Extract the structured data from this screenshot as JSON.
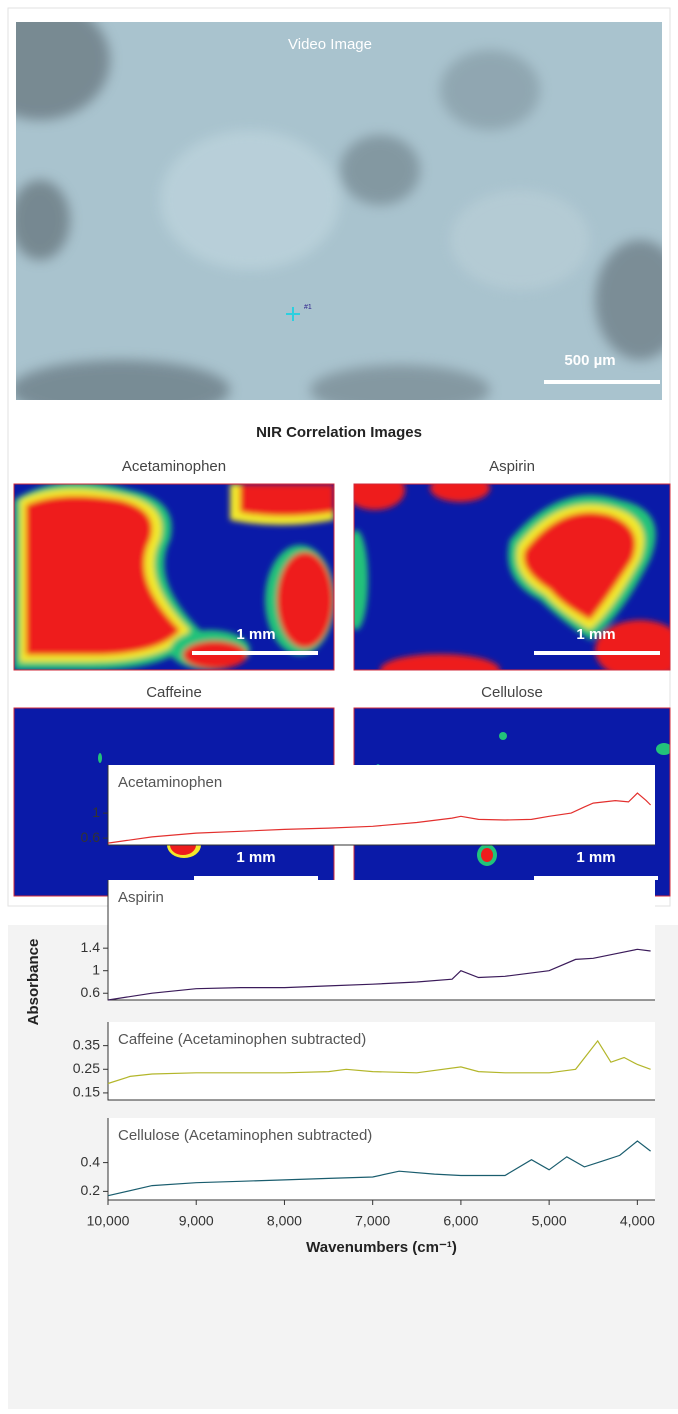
{
  "images": {
    "video_title": "Video Image",
    "video_scale": "500 µm",
    "marker": "#1",
    "nir_title": "NIR Correlation Images",
    "panels": [
      {
        "label": "Acetaminophen",
        "scale": "1 mm"
      },
      {
        "label": "Aspirin",
        "scale": "1 mm"
      },
      {
        "label": "Caffeine",
        "scale": "1 mm"
      },
      {
        "label": "Cellulose",
        "scale": "1 mm"
      }
    ]
  },
  "spectra_ylabel": "Absorbance",
  "chart_data": [
    {
      "type": "line",
      "title": "Acetaminophen",
      "color": "#e3302e",
      "xlim": [
        10000,
        3800
      ],
      "ylim": [
        0.49,
        1.77
      ],
      "yticks": [
        0.6,
        1.0
      ],
      "x": [
        10000,
        9500,
        9000,
        8500,
        8000,
        7500,
        7000,
        6500,
        6100,
        6000,
        5800,
        5500,
        5200,
        5000,
        4750,
        4600,
        4500,
        4250,
        4100,
        4000,
        3900,
        3850
      ],
      "values": [
        0.52,
        0.62,
        0.68,
        0.71,
        0.74,
        0.76,
        0.79,
        0.85,
        0.92,
        0.95,
        0.9,
        0.89,
        0.9,
        0.95,
        1.0,
        1.1,
        1.16,
        1.2,
        1.18,
        1.32,
        1.2,
        1.13
      ]
    },
    {
      "type": "line",
      "title": "Aspirin",
      "color": "#3b1b5a",
      "xlim": [
        10000,
        3800
      ],
      "ylim": [
        0.48,
        2.61
      ],
      "yticks": [
        0.6,
        1.0,
        1.4
      ],
      "x": [
        10000,
        9500,
        9000,
        8500,
        8000,
        7500,
        7000,
        6500,
        6100,
        6000,
        5800,
        5500,
        5000,
        4700,
        4500,
        4250,
        4000,
        3850
      ],
      "values": [
        0.48,
        0.6,
        0.68,
        0.7,
        0.7,
        0.73,
        0.76,
        0.8,
        0.85,
        1.0,
        0.88,
        0.9,
        1.0,
        1.2,
        1.22,
        1.3,
        1.38,
        1.35
      ]
    },
    {
      "type": "line",
      "title": "Caffeine (Acetaminophen subtracted)",
      "color": "#b3b62a",
      "xlim": [
        10000,
        3800
      ],
      "ylim": [
        0.12,
        0.45
      ],
      "yticks": [
        0.15,
        0.25,
        0.35
      ],
      "x": [
        10000,
        9750,
        9500,
        9000,
        8500,
        8000,
        7500,
        7300,
        7000,
        6500,
        6000,
        5800,
        5500,
        5000,
        4700,
        4450,
        4300,
        4150,
        4000,
        3850
      ],
      "values": [
        0.19,
        0.22,
        0.23,
        0.235,
        0.235,
        0.235,
        0.24,
        0.25,
        0.24,
        0.235,
        0.26,
        0.24,
        0.235,
        0.235,
        0.25,
        0.37,
        0.28,
        0.3,
        0.27,
        0.25
      ]
    },
    {
      "type": "line",
      "title": "Cellulose (Acetaminophen subtracted)",
      "color": "#1a5d6e",
      "xlim": [
        10000,
        3800
      ],
      "ylim": [
        0.14,
        0.71
      ],
      "yticks": [
        0.2,
        0.4
      ],
      "x": [
        10000,
        9500,
        9000,
        8500,
        8000,
        7500,
        7000,
        6700,
        6300,
        6000,
        5500,
        5200,
        5000,
        4800,
        4600,
        4400,
        4200,
        4000,
        3850
      ],
      "values": [
        0.17,
        0.24,
        0.26,
        0.27,
        0.28,
        0.29,
        0.3,
        0.34,
        0.32,
        0.31,
        0.31,
        0.42,
        0.35,
        0.44,
        0.37,
        0.41,
        0.45,
        0.55,
        0.48
      ],
      "xticks": [
        {
          "value": 10000,
          "label": "10,000"
        },
        {
          "value": 9000,
          "label": "9,000"
        },
        {
          "value": 8000,
          "label": "8,000"
        },
        {
          "value": 7000,
          "label": "7,000"
        },
        {
          "value": 6000,
          "label": "6,000"
        },
        {
          "value": 5000,
          "label": "5,000"
        },
        {
          "value": 4000,
          "label": "4,000"
        }
      ],
      "xlabel": "Wavenumbers (cm⁻¹)"
    }
  ]
}
